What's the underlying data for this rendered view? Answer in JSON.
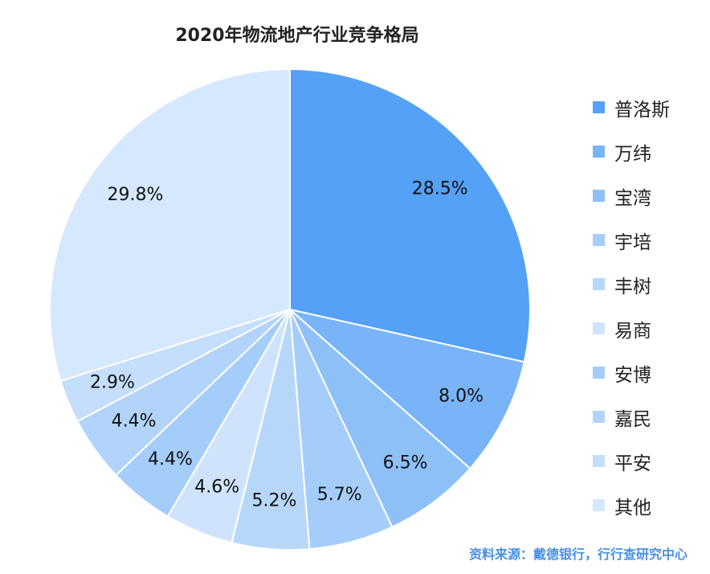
{
  "chart_data": {
    "type": "pie",
    "title": "2020年物流地产行业竞争格局",
    "categories": [
      "普洛斯",
      "万纬",
      "宝湾",
      "宇培",
      "丰树",
      "易商",
      "安博",
      "嘉民",
      "平安",
      "其他"
    ],
    "values": [
      28.5,
      8.0,
      6.5,
      5.7,
      5.2,
      4.6,
      4.4,
      4.4,
      2.9,
      29.8
    ],
    "value_labels": [
      "28.5%",
      "8.0%",
      "6.5%",
      "5.7%",
      "5.2%",
      "4.6%",
      "4.4%",
      "4.4%",
      "2.9%",
      "29.8%"
    ],
    "colors": [
      "#55a1f7",
      "#78b4f7",
      "#8ec0f8",
      "#a5cdf9",
      "#b7d7fa",
      "#cfe4fc",
      "#a5cdf9",
      "#b2d4fa",
      "#c4defb",
      "#d6e8fd"
    ],
    "legend_position": "right",
    "start": "12 o'clock, clockwise"
  },
  "source_text": "资料来源：戴德银行，行行查研究中心"
}
